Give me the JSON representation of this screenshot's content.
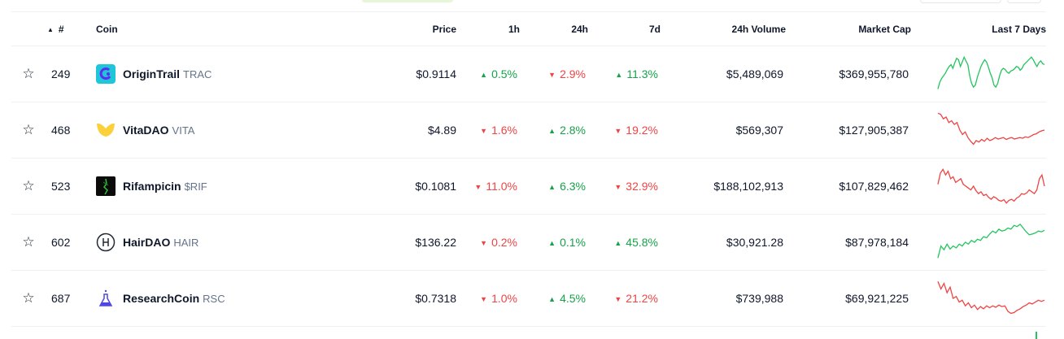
{
  "header": {
    "sort_icon": "sort-up-triangle-icon",
    "rank": "#",
    "coin": "Coin",
    "price": "Price",
    "h1": "1h",
    "h24": "24h",
    "d7": "7d",
    "volume": "24h Volume",
    "market_cap": "Market Cap",
    "spark": "Last 7 Days"
  },
  "colors": {
    "up": "#16a34a",
    "down": "#ef4444",
    "spark_up": "#22c55e",
    "spark_down": "#ef4444"
  },
  "rows": [
    {
      "rank": "249",
      "name": "OriginTrail",
      "symbol": "TRAC",
      "price": "$0.9114",
      "h1": {
        "dir": "up",
        "val": "0.5%"
      },
      "h24": {
        "dir": "down",
        "val": "2.9%"
      },
      "d7": {
        "dir": "up",
        "val": "11.3%"
      },
      "volume": "$5,489,069",
      "market_cap": "$369,955,780",
      "spark_trend": "up",
      "spark": [
        0.9,
        0.72,
        0.62,
        0.55,
        0.48,
        0.38,
        0.3,
        0.25,
        0.35,
        0.2,
        0.08,
        0.12,
        0.3,
        0.18,
        0.05,
        0.15,
        0.25,
        0.55,
        0.75,
        0.85,
        0.8,
        0.6,
        0.45,
        0.3,
        0.2,
        0.12,
        0.18,
        0.32,
        0.48,
        0.6,
        0.8,
        0.85,
        0.75,
        0.55,
        0.4,
        0.35,
        0.38,
        0.45,
        0.48,
        0.42,
        0.4,
        0.36,
        0.3,
        0.32,
        0.4,
        0.35,
        0.25,
        0.2,
        0.15,
        0.1,
        0.05,
        0.12,
        0.22,
        0.3,
        0.2,
        0.15,
        0.22,
        0.25
      ]
    },
    {
      "rank": "468",
      "name": "VitaDAO",
      "symbol": "VITA",
      "price": "$4.89",
      "h1": {
        "dir": "down",
        "val": "1.6%"
      },
      "h24": {
        "dir": "up",
        "val": "2.8%"
      },
      "d7": {
        "dir": "down",
        "val": "19.2%"
      },
      "volume": "$569,307",
      "market_cap": "$127,905,387",
      "spark_trend": "down",
      "spark": [
        0.05,
        0.08,
        0.2,
        0.15,
        0.3,
        0.25,
        0.35,
        0.3,
        0.5,
        0.62,
        0.55,
        0.7,
        0.8,
        0.88,
        0.78,
        0.82,
        0.75,
        0.8,
        0.72,
        0.78,
        0.75,
        0.7,
        0.74,
        0.72,
        0.7,
        0.75,
        0.72,
        0.7,
        0.74,
        0.72,
        0.7,
        0.72,
        0.68,
        0.7,
        0.66,
        0.62,
        0.6,
        0.55,
        0.52,
        0.5
      ]
    },
    {
      "rank": "523",
      "name": "Rifampicin",
      "symbol": "$RIF",
      "price": "$0.1081",
      "h1": {
        "dir": "down",
        "val": "11.0%"
      },
      "h24": {
        "dir": "up",
        "val": "6.3%"
      },
      "d7": {
        "dir": "down",
        "val": "32.9%"
      },
      "volume": "$188,102,913",
      "market_cap": "$107,829,462",
      "spark_trend": "down",
      "spark": [
        0.45,
        0.15,
        0.05,
        0.2,
        0.1,
        0.3,
        0.25,
        0.4,
        0.35,
        0.3,
        0.45,
        0.5,
        0.55,
        0.6,
        0.5,
        0.62,
        0.7,
        0.65,
        0.75,
        0.72,
        0.8,
        0.85,
        0.78,
        0.82,
        0.88,
        0.9,
        0.86,
        0.95,
        0.88,
        0.85,
        0.9,
        0.82,
        0.78,
        0.7,
        0.72,
        0.68,
        0.6,
        0.65,
        0.7,
        0.6,
        0.3,
        0.2,
        0.5
      ]
    },
    {
      "rank": "602",
      "name": "HairDAO",
      "symbol": "HAIR",
      "price": "$136.22",
      "h1": {
        "dir": "down",
        "val": "0.2%"
      },
      "h24": {
        "dir": "up",
        "val": "0.1%"
      },
      "d7": {
        "dir": "up",
        "val": "45.8%"
      },
      "volume": "$30,921.28",
      "market_cap": "$87,978,184",
      "spark_trend": "up",
      "spark": [
        0.92,
        0.6,
        0.7,
        0.55,
        0.68,
        0.6,
        0.65,
        0.55,
        0.6,
        0.5,
        0.55,
        0.45,
        0.5,
        0.42,
        0.45,
        0.35,
        0.38,
        0.28,
        0.2,
        0.25,
        0.15,
        0.2,
        0.18,
        0.12,
        0.15,
        0.05,
        0.08,
        0.02,
        0.12,
        0.22,
        0.3,
        0.28,
        0.25,
        0.2,
        0.22,
        0.18
      ]
    },
    {
      "rank": "687",
      "name": "ResearchCoin",
      "symbol": "RSC",
      "price": "$0.7318",
      "h1": {
        "dir": "down",
        "val": "1.0%"
      },
      "h24": {
        "dir": "up",
        "val": "4.5%"
      },
      "d7": {
        "dir": "down",
        "val": "21.2%"
      },
      "volume": "$739,988",
      "market_cap": "$69,921,225",
      "spark_trend": "down",
      "spark": [
        0.05,
        0.25,
        0.1,
        0.35,
        0.2,
        0.5,
        0.45,
        0.6,
        0.55,
        0.7,
        0.62,
        0.75,
        0.68,
        0.8,
        0.72,
        0.78,
        0.7,
        0.75,
        0.7,
        0.74,
        0.68,
        0.72,
        0.7,
        0.85,
        0.9,
        0.88,
        0.82,
        0.78,
        0.72,
        0.68,
        0.62,
        0.65,
        0.6,
        0.55,
        0.58,
        0.55
      ]
    }
  ]
}
